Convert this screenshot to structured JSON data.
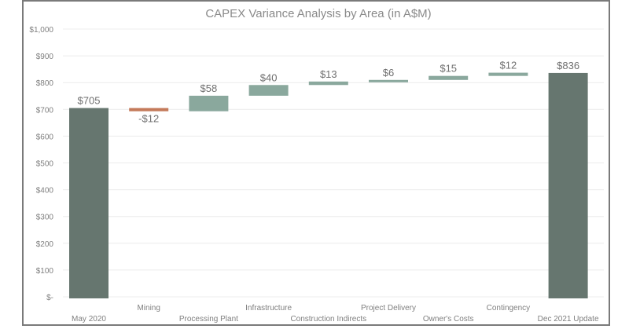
{
  "chart_data": {
    "type": "waterfall",
    "title": "CAPEX Variance Analysis by Area (in A$M)",
    "categories": [
      "May 2020",
      "Mining",
      "Processing Plant",
      "Infrastructure",
      "Construction Indirects",
      "Project Delivery",
      "Owner's Costs",
      "Contingency",
      "Dec 2021 Update"
    ],
    "values": [
      705,
      -12,
      58,
      40,
      13,
      6,
      15,
      12,
      836
    ],
    "kinds": [
      "total",
      "decrease",
      "increase",
      "increase",
      "increase",
      "increase",
      "increase",
      "increase",
      "total"
    ],
    "data_labels": [
      "$705",
      "-$12",
      "$58",
      "$40",
      "$13",
      "$6",
      "$15",
      "$12",
      "$836"
    ],
    "ylim": [
      0,
      1000
    ],
    "yticks": [
      0,
      100,
      200,
      300,
      400,
      500,
      600,
      700,
      800,
      900,
      1000
    ],
    "ytick_labels": [
      "$-",
      "$100",
      "$200",
      "$300",
      "$400",
      "$500",
      "$600",
      "$700",
      "$800",
      "$900",
      "$1,000"
    ],
    "grid": true,
    "legend": "none",
    "colors": {
      "total": "#66766f",
      "increase": "#8aa89d",
      "decrease": "#c47a5a",
      "grid": "#ececec"
    }
  }
}
